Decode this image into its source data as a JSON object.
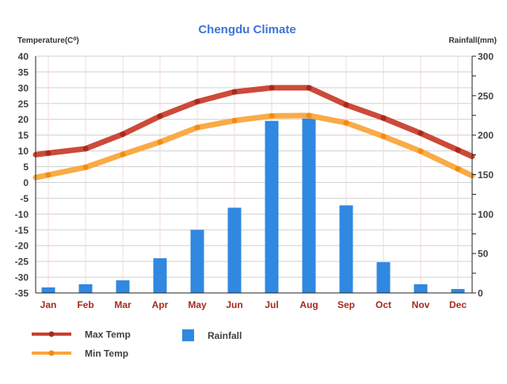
{
  "chart_data": {
    "type": "bar+line",
    "title": "Chengdu Climate",
    "ylabel_left": "Temperature(C⁰)",
    "ylabel_right": "Rainfall(mm)",
    "categories": [
      "Jan",
      "Feb",
      "Mar",
      "Apr",
      "May",
      "Jun",
      "Jul",
      "Aug",
      "Sep",
      "Oct",
      "Nov",
      "Dec"
    ],
    "ylim_left": [
      -35,
      40
    ],
    "yticks_left": [
      40,
      35,
      30,
      25,
      20,
      15,
      10,
      5,
      0,
      -5,
      -10,
      -15,
      -20,
      -25,
      -30,
      -35
    ],
    "ylim_right": [
      0,
      300
    ],
    "yticks_right": [
      300,
      250,
      200,
      150,
      100,
      50,
      0
    ],
    "grid": true,
    "legend_position": "bottom-left",
    "series": [
      {
        "name": "Max Temp",
        "type": "line",
        "axis": "left",
        "color": "#c9402e",
        "marker_color": "#a52a1e",
        "values": [
          9.3,
          10.7,
          15.3,
          21.0,
          25.6,
          28.7,
          30.0,
          30.0,
          24.6,
          20.4,
          15.6,
          10.3
        ]
      },
      {
        "name": "Min Temp",
        "type": "line",
        "axis": "left",
        "color": "#f9a63c",
        "marker_color": "#f28c0f",
        "values": [
          2.4,
          4.8,
          8.9,
          12.8,
          17.4,
          19.6,
          21.1,
          21.2,
          18.9,
          14.6,
          9.9,
          4.3
        ]
      },
      {
        "name": "Rainfall",
        "type": "bar",
        "axis": "right",
        "color": "#3088e0",
        "values": [
          7,
          11,
          16,
          44,
          80,
          108,
          218,
          221,
          111,
          39,
          11,
          5
        ]
      }
    ],
    "colors": {
      "title": "#3f73d8",
      "month_labels": "#a52a1e",
      "axis_text": "#404040"
    }
  }
}
